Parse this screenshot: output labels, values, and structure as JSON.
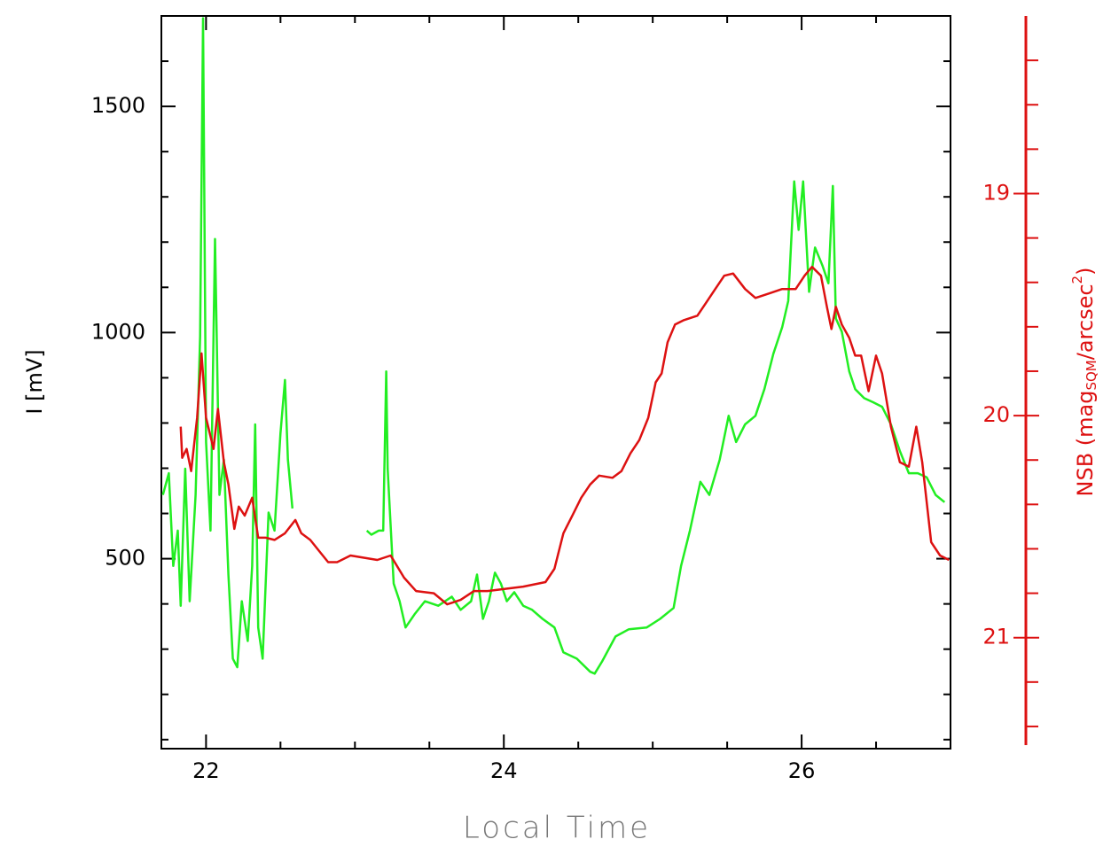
{
  "chart_data": {
    "type": "line",
    "xlabel": "Local Time",
    "ylabel": "I [mV]",
    "y2label": [
      "NSB (mag",
      "SQM",
      "/arcsec",
      "2",
      ")"
    ],
    "xlim": [
      21.7,
      27.0
    ],
    "xticks": [
      22,
      24,
      26
    ],
    "xticks_minor": [
      22.5,
      23,
      23.5,
      24.5,
      25,
      25.5,
      26.5
    ],
    "ylim": [
      80,
      1700
    ],
    "yticks": [
      500,
      1000,
      1500
    ],
    "yticks_minor": [
      100,
      200,
      300,
      400,
      600,
      700,
      800,
      900,
      1100,
      1200,
      1300,
      1400,
      1600
    ],
    "y2lim": [
      21.5,
      18.2
    ],
    "y2ticks": [
      19,
      20,
      21
    ],
    "y2ticks_minor": [
      18.4,
      18.6,
      18.8,
      19.2,
      19.4,
      19.6,
      19.8,
      20.2,
      20.4,
      20.6,
      20.8,
      21.2,
      21.4
    ],
    "y2color": "#dd1111",
    "series": [
      {
        "color": "#22ee22",
        "x": [
          21.71,
          21.75,
          21.78,
          21.81,
          21.83,
          21.86,
          21.89,
          21.93,
          21.96,
          21.98,
          22.0,
          22.03,
          22.06,
          22.09,
          22.12,
          22.15,
          22.18,
          22.21,
          22.24,
          22.28,
          22.31,
          22.33,
          22.35,
          22.38,
          22.42,
          22.46,
          22.5,
          22.53,
          22.55,
          22.58,
          22.8,
          23.08,
          23.11,
          23.16,
          23.19,
          23.21,
          23.22,
          23.26,
          23.3,
          23.34,
          23.4,
          23.47,
          23.56,
          23.65,
          23.71,
          23.78,
          23.82,
          23.86,
          23.9,
          23.94,
          23.98,
          24.02,
          24.07,
          24.13,
          24.19,
          24.26,
          24.34,
          24.4,
          24.49,
          24.58,
          24.61,
          24.66,
          24.75,
          24.84,
          24.96,
          25.05,
          25.14,
          25.19,
          25.25,
          25.32,
          25.38,
          25.45,
          25.51,
          25.56,
          25.62,
          25.69,
          25.75,
          25.81,
          25.87,
          25.91,
          25.95,
          25.98,
          26.01,
          26.05,
          26.09,
          26.14,
          26.18,
          26.21,
          26.23,
          26.27,
          26.32,
          26.36,
          26.42,
          26.48,
          26.54,
          26.6,
          26.66,
          26.72,
          26.78,
          26.84,
          26.9,
          26.96
        ],
        "values": [
          641,
          689,
          484,
          562,
          396,
          699,
          406,
          641,
          992,
          1695,
          758,
          562,
          1207,
          641,
          719,
          465,
          279,
          260,
          406,
          318,
          484,
          797,
          348,
          279,
          602,
          562,
          777,
          895,
          719,
          611,
          null,
          562,
          553,
          562,
          562,
          914,
          699,
          445,
          406,
          348,
          377,
          406,
          396,
          416,
          387,
          406,
          465,
          367,
          406,
          469,
          445,
          406,
          426,
          396,
          387,
          367,
          348,
          293,
          279,
          250,
          246,
          273,
          328,
          344,
          348,
          367,
          391,
          484,
          562,
          670,
          641,
          719,
          816,
          758,
          797,
          816,
          875,
          953,
          1012,
          1070,
          1334,
          1227,
          1334,
          1090,
          1188,
          1148,
          1109,
          1324,
          1031,
          1002,
          914,
          875,
          855,
          846,
          836,
          797,
          738,
          689,
          689,
          680,
          641,
          625
        ]
      },
      {
        "color": "#dd1111",
        "axis": "y2",
        "x": [
          21.83,
          21.84,
          21.87,
          21.9,
          21.94,
          21.97,
          22.0,
          22.05,
          22.08,
          22.12,
          22.15,
          22.19,
          22.22,
          22.26,
          22.31,
          22.35,
          22.4,
          22.46,
          22.53,
          22.6,
          22.64,
          22.7,
          22.76,
          22.82,
          22.88,
          22.97,
          23.06,
          23.15,
          23.24,
          23.33,
          23.41,
          23.53,
          23.62,
          23.71,
          23.8,
          23.89,
          24.01,
          24.13,
          24.28,
          24.34,
          24.4,
          24.46,
          24.52,
          24.58,
          24.64,
          24.73,
          24.79,
          24.85,
          24.91,
          24.97,
          25.02,
          25.06,
          25.1,
          25.15,
          25.21,
          25.3,
          25.36,
          25.42,
          25.48,
          25.54,
          25.62,
          25.69,
          25.78,
          25.87,
          25.96,
          26.02,
          26.07,
          26.13,
          26.17,
          26.2,
          26.23,
          26.27,
          26.32,
          26.36,
          26.4,
          26.45,
          26.5,
          26.54,
          26.6,
          26.66,
          26.72,
          26.77,
          26.81,
          26.87,
          26.93,
          26.99
        ],
        "values": [
          20.05,
          20.19,
          20.15,
          20.25,
          20.01,
          19.72,
          20.01,
          20.15,
          19.97,
          20.21,
          20.31,
          20.51,
          20.41,
          20.45,
          20.37,
          20.55,
          20.55,
          20.56,
          20.53,
          20.47,
          20.53,
          20.56,
          20.61,
          20.66,
          20.66,
          20.63,
          20.64,
          20.65,
          20.63,
          20.73,
          20.79,
          20.8,
          20.85,
          20.83,
          20.79,
          20.79,
          20.78,
          20.77,
          20.75,
          20.69,
          20.53,
          20.45,
          20.37,
          20.31,
          20.27,
          20.28,
          20.25,
          20.17,
          20.11,
          20.01,
          19.85,
          19.81,
          19.67,
          19.59,
          19.57,
          19.55,
          19.49,
          19.43,
          19.37,
          19.36,
          19.43,
          19.47,
          19.45,
          19.43,
          19.43,
          19.37,
          19.33,
          19.37,
          19.51,
          19.61,
          19.51,
          19.59,
          19.65,
          19.73,
          19.73,
          19.89,
          19.73,
          19.81,
          20.05,
          20.21,
          20.23,
          20.05,
          20.21,
          20.57,
          20.63,
          20.65
        ]
      }
    ]
  }
}
